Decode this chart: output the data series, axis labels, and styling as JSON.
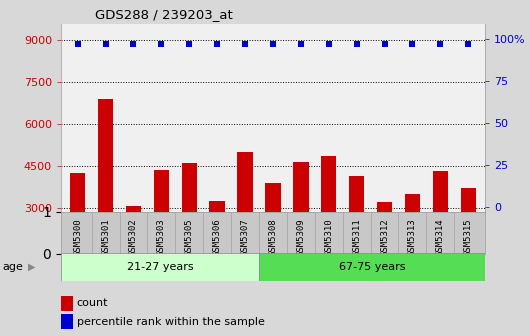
{
  "title": "GDS288 / 239203_at",
  "samples": [
    "GSM5300",
    "GSM5301",
    "GSM5302",
    "GSM5303",
    "GSM5305",
    "GSM5306",
    "GSM5307",
    "GSM5308",
    "GSM5309",
    "GSM5310",
    "GSM5311",
    "GSM5312",
    "GSM5313",
    "GSM5314",
    "GSM5315"
  ],
  "counts": [
    4250,
    6900,
    3050,
    4350,
    4600,
    3250,
    5000,
    3900,
    4650,
    4850,
    4150,
    3200,
    3500,
    4300,
    3700
  ],
  "perc_vals": [
    97,
    97,
    97,
    97,
    97,
    97,
    97,
    97,
    97,
    97,
    97,
    97,
    97,
    97,
    97
  ],
  "group1_label": "21-27 years",
  "group2_label": "67-75 years",
  "group1_count": 7,
  "group2_count": 8,
  "group1_color": "#ccffcc",
  "group2_color": "#55dd55",
  "bar_color": "#cc0000",
  "dot_color": "#0000cc",
  "ylim_left": [
    2800,
    9600
  ],
  "ylim_right": [
    -4,
    109
  ],
  "yticks_left": [
    3000,
    4500,
    6000,
    7500,
    9000
  ],
  "yticks_right": [
    0,
    25,
    50,
    75,
    100
  ],
  "ytick_labels_right": [
    "0",
    "25",
    "50",
    "75",
    "100%"
  ],
  "background_color": "#d8d8d8",
  "plot_bg_color": "#f0f0f0",
  "tick_label_bg": "#c8c8c8",
  "legend_count_label": "count",
  "legend_percentile_label": "percentile rank within the sample",
  "age_label": "age"
}
